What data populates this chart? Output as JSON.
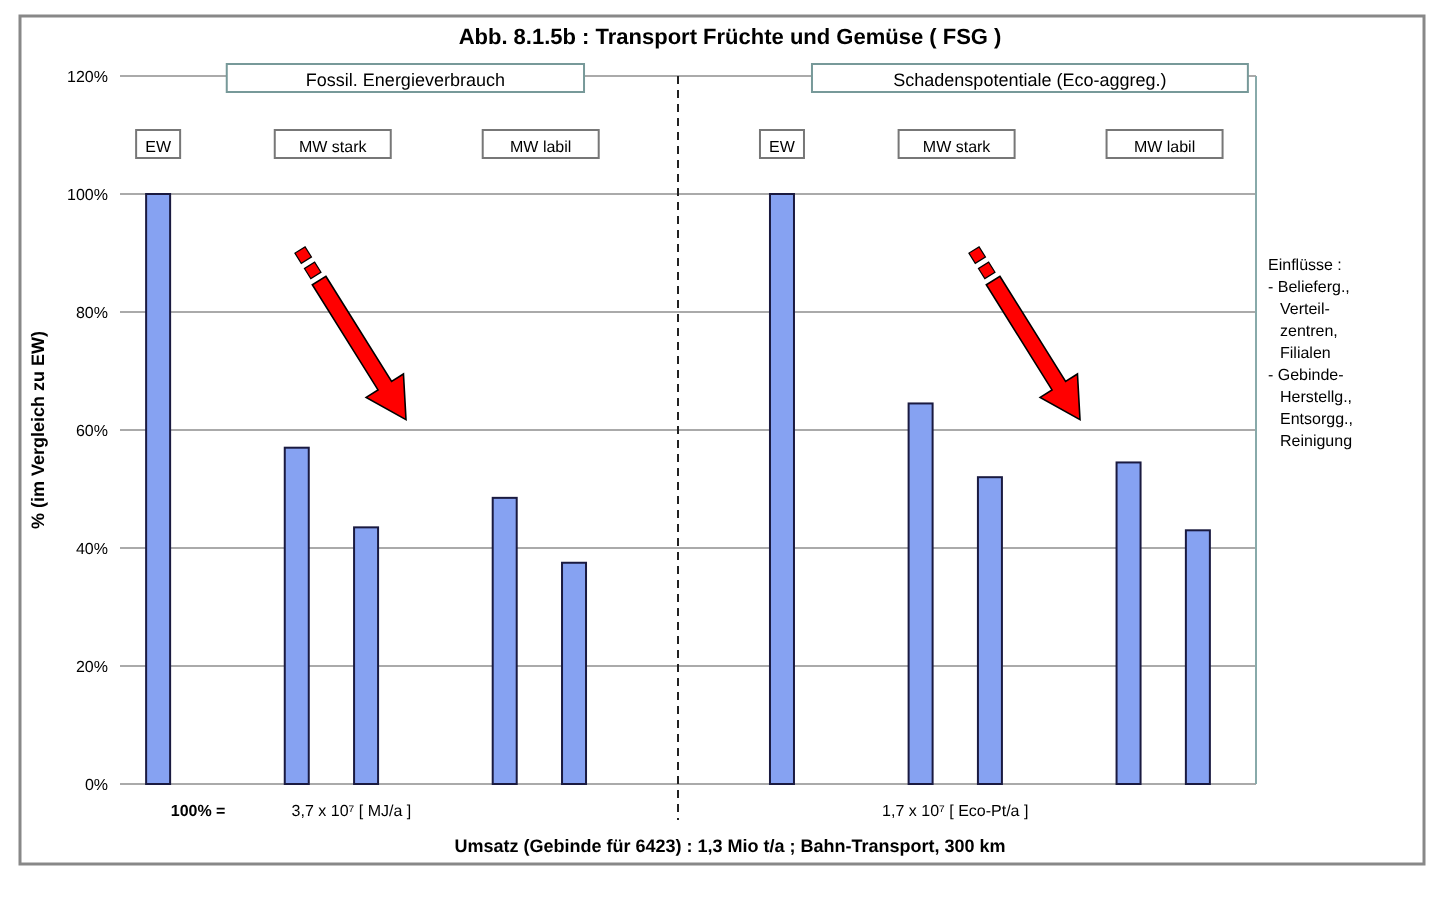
{
  "chart_data": {
    "type": "bar",
    "title": "Abb. 8.1.5b : Transport Früchte und Gemüse ( FSG )",
    "ylabel": "% (im Vergleich zu EW)",
    "xlabel": "Umsatz (Gebinde für 6423) : 1,3 Mio t/a ; Bahn-Transport, 300 km",
    "categories": [
      null,
      null,
      null,
      null,
      null,
      null,
      null,
      null,
      null,
      null,
      null,
      null,
      null,
      null,
      null,
      null
    ],
    "values": [
      100,
      null,
      57,
      43.5,
      null,
      48.5,
      37.5,
      null,
      null,
      100,
      null,
      64.5,
      52,
      null,
      54.5,
      43
    ],
    "color": "#86a2f2",
    "ylim": [
      0,
      120
    ],
    "yticks": [
      {
        "value": 0,
        "label": "0%"
      },
      {
        "value": 20,
        "label": "20%"
      },
      {
        "value": 40,
        "label": "40%"
      },
      {
        "value": 60,
        "label": "60%"
      },
      {
        "value": 80,
        "label": "80%"
      },
      {
        "value": 100,
        "label": "100%"
      },
      {
        "value": 120,
        "label": "120%"
      }
    ],
    "grid": "y",
    "annotations": [
      "Fossil. Energieverbrauch",
      "Schadenspotentiale (Eco-aggreg.)",
      "EW",
      "MW stark",
      "MW labil",
      "EW",
      "MW stark",
      "MW labil",
      "100% =",
      "3,7 x 10⁷ [ MJ/a ]",
      "1,7 x 10⁷ [ Eco-Pt/a ]",
      "Einflüsse :\n- Belieferg.,\n  Verteil-\n  zentren,\n  Filialen\n- Gebinde-\n  Herstellg.,\n  Entsorgg.,\n  Reinigung"
    ]
  }
}
